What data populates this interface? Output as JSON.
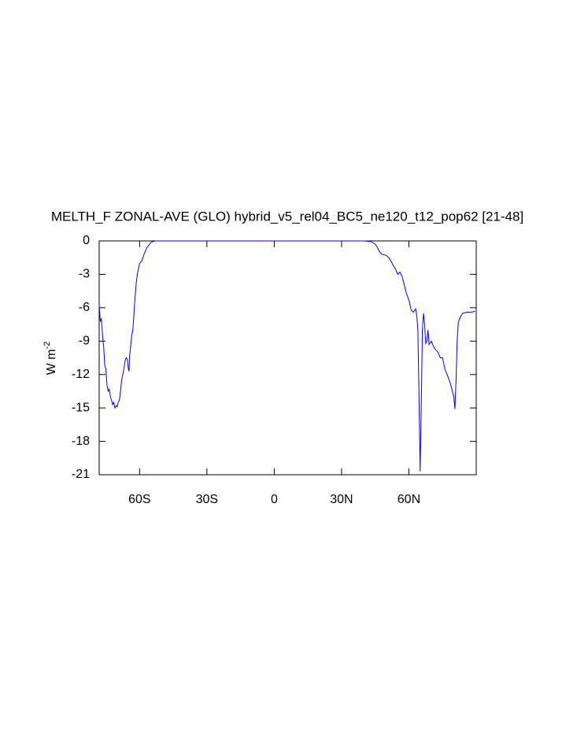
{
  "chart_data": {
    "type": "line",
    "title": "MELTH_F ZONAL-AVE (GLO) hybrid_v5_rel04_BC5_ne120_t12_pop62 [21-48]",
    "ylabel": {
      "text": "W m",
      "superscript": "-2"
    },
    "x": [
      -78,
      -77.5,
      -77,
      -76.5,
      -76,
      -75.5,
      -75,
      -74.5,
      -74,
      -73.5,
      -73,
      -72.5,
      -72,
      -71.5,
      -71,
      -70.5,
      -70,
      -69.5,
      -69,
      -68.5,
      -68,
      -67.5,
      -67,
      -66.5,
      -66,
      -65.5,
      -65,
      -64.7,
      -64.5,
      -64,
      -63.5,
      -63,
      -62.5,
      -62,
      -61.5,
      -61,
      -60.5,
      -60,
      -59,
      -58,
      -57,
      -56,
      -55,
      -54,
      -53,
      -52,
      40,
      43,
      45,
      46,
      47,
      48,
      50,
      51,
      52,
      53,
      54,
      55,
      56,
      57,
      58,
      59,
      60,
      61,
      62,
      63,
      63.5,
      64,
      64.5,
      65,
      65.5,
      66,
      66.5,
      67,
      67.5,
      68,
      68.5,
      69,
      70,
      71,
      72,
      73,
      74,
      75,
      76,
      77,
      78,
      79,
      80,
      80.5,
      81,
      81.5,
      82,
      83,
      84,
      86,
      88,
      89.5
    ],
    "series": [
      {
        "name": "MELTH_F",
        "color": "#0000ff",
        "values": [
          -5.8,
          -7.2,
          -7.0,
          -8.5,
          -9.5,
          -11.2,
          -11.5,
          -13.0,
          -13.5,
          -13.3,
          -14.0,
          -14.3,
          -14.7,
          -14.5,
          -15.0,
          -14.8,
          -14.9,
          -14.5,
          -14.3,
          -13.5,
          -12.5,
          -12.0,
          -11.5,
          -10.8,
          -10.5,
          -10.6,
          -11.5,
          -11.7,
          -10.5,
          -9.5,
          -8.5,
          -8.0,
          -6.5,
          -5.0,
          -3.8,
          -3.0,
          -2.5,
          -2.0,
          -1.8,
          -1.2,
          -0.7,
          -0.4,
          -0.15,
          -0.05,
          0,
          0,
          0,
          -0.05,
          -0.3,
          -0.6,
          -1.0,
          -1.2,
          -1.3,
          -1.5,
          -1.8,
          -2.2,
          -2.5,
          -3.0,
          -2.8,
          -3.2,
          -4.0,
          -4.8,
          -5.3,
          -6.2,
          -6.4,
          -6.1,
          -6.7,
          -8.0,
          -14.0,
          -20.7,
          -15.0,
          -8.0,
          -6.5,
          -7.5,
          -9.2,
          -9.0,
          -8.0,
          -9.3,
          -9.0,
          -9.5,
          -9.8,
          -10.0,
          -10.5,
          -10.5,
          -11.5,
          -12.0,
          -12.5,
          -13.2,
          -14.0,
          -15.1,
          -12.5,
          -9.0,
          -7.3,
          -6.8,
          -6.5,
          -6.4,
          -6.4,
          -6.3
        ]
      }
    ],
    "xlim": [
      -78,
      90
    ],
    "ylim": [
      -21,
      0
    ],
    "xticks": [
      {
        "value": -60,
        "label": "60S"
      },
      {
        "value": -30,
        "label": "30S"
      },
      0,
      {
        "value": 30,
        "label": "30N"
      },
      {
        "value": 60,
        "label": "60N"
      }
    ],
    "yticks": [
      0,
      -3,
      -6,
      -9,
      -12,
      -15,
      -18,
      -21
    ]
  }
}
